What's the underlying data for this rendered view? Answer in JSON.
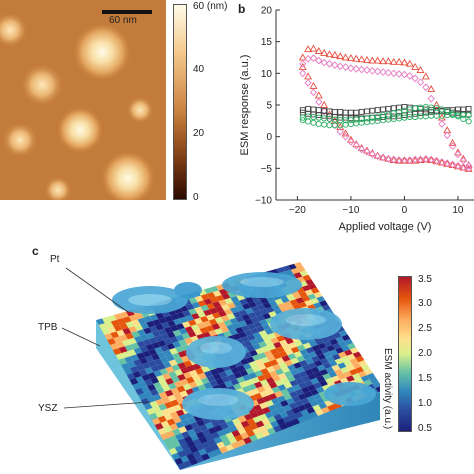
{
  "panel_a": {
    "scalebar_label": "60 nm",
    "colorbar": {
      "ticks": [
        "60 (nm)",
        "40",
        "20",
        "0"
      ],
      "colors": [
        "#fffbe8",
        "#f3c88a",
        "#c9813f",
        "#7a3a12",
        "#2a0a02"
      ]
    }
  },
  "panel_b": {
    "panel_label": "b",
    "chart_data": {
      "type": "scatter",
      "xlabel": "Applied voltage (V)",
      "ylabel": "ESM response (a.u.)",
      "xlim": [
        -24,
        13
      ],
      "ylim": [
        -10,
        20
      ],
      "xticks": [
        "−20",
        "−10",
        "0",
        "10"
      ],
      "yticks": [
        "20",
        "15",
        "10",
        "5",
        "0",
        "−5",
        "−10"
      ],
      "series": [
        {
          "marker": "triangle",
          "color": "#e74c3c",
          "x": [
            -19,
            -18,
            -17,
            -16,
            -15,
            -14,
            -13,
            -12,
            -11,
            -10,
            -9,
            -8,
            -7,
            -6,
            -5,
            -4,
            -3,
            -2,
            -1,
            0,
            1,
            2,
            3,
            4,
            5,
            6,
            7,
            8,
            9,
            10,
            11,
            12
          ],
          "y": [
            12.5,
            13.8,
            13.9,
            13.5,
            13.2,
            13.0,
            12.9,
            12.7,
            12.5,
            12.4,
            12.3,
            12.2,
            12.1,
            12.0,
            12.0,
            11.9,
            11.9,
            11.8,
            11.8,
            11.7,
            11.5,
            11.0,
            10.5,
            9.5,
            7.5,
            5.0,
            3.0,
            1.0,
            -1.0,
            -2.5,
            -3.5,
            -4.5
          ]
        },
        {
          "marker": "triangle",
          "color": "#e74c3c",
          "x": [
            -19,
            -18,
            -17,
            -16,
            -15,
            -14,
            -13,
            -12,
            -11,
            -10,
            -9,
            -8,
            -7,
            -6,
            -5,
            -4,
            -3,
            -2,
            -1,
            0,
            1,
            2,
            3,
            4,
            5,
            6,
            7,
            8,
            9,
            10,
            11,
            12
          ],
          "y": [
            11.0,
            9.5,
            8.0,
            6.5,
            5.0,
            3.5,
            2.5,
            1.5,
            0.5,
            -0.5,
            -1.2,
            -1.8,
            -2.2,
            -2.6,
            -3.0,
            -3.3,
            -3.5,
            -3.7,
            -3.8,
            -3.8,
            -3.8,
            -3.8,
            -3.7,
            -3.6,
            -3.7,
            -3.9,
            -4.1,
            -4.3,
            -4.5,
            -4.7,
            -4.9,
            -5.1
          ]
        },
        {
          "marker": "diamond",
          "color": "#e879c3",
          "x": [
            -19,
            -18,
            -17,
            -16,
            -15,
            -14,
            -13,
            -12,
            -11,
            -10,
            -9,
            -8,
            -7,
            -6,
            -5,
            -4,
            -3,
            -2,
            -1,
            0,
            1,
            2,
            3,
            4,
            5,
            6,
            7,
            8,
            9,
            10,
            11,
            12
          ],
          "y": [
            11.5,
            12.3,
            12.4,
            12.0,
            11.7,
            11.5,
            11.3,
            11.1,
            11.0,
            10.8,
            10.7,
            10.6,
            10.5,
            10.4,
            10.3,
            10.2,
            10.1,
            10.0,
            9.9,
            9.8,
            9.6,
            9.2,
            8.6,
            7.8,
            6.0,
            4.0,
            2.0,
            0.2,
            -1.5,
            -2.8,
            -3.8,
            -4.6
          ]
        },
        {
          "marker": "diamond",
          "color": "#e879c3",
          "x": [
            -19,
            -18,
            -17,
            -16,
            -15,
            -14,
            -13,
            -12,
            -11,
            -10,
            -9,
            -8,
            -7,
            -6,
            -5,
            -4,
            -3,
            -2,
            -1,
            0,
            1,
            2,
            3,
            4,
            5,
            6,
            7,
            8,
            9,
            10,
            11,
            12
          ],
          "y": [
            10.0,
            8.5,
            7.0,
            5.5,
            4.0,
            2.8,
            1.8,
            0.8,
            0.0,
            -0.8,
            -1.4,
            -2.0,
            -2.4,
            -2.8,
            -3.1,
            -3.3,
            -3.5,
            -3.6,
            -3.7,
            -3.7,
            -3.7,
            -3.6,
            -3.6,
            -3.5,
            -3.6,
            -3.8,
            -4.0,
            -4.2,
            -4.4,
            -4.6,
            -4.8,
            -5.0
          ]
        },
        {
          "marker": "square",
          "color": "#444444",
          "x": [
            -19,
            -18,
            -17,
            -16,
            -15,
            -14,
            -13,
            -12,
            -11,
            -10,
            -9,
            -8,
            -7,
            -6,
            -5,
            -4,
            -3,
            -2,
            -1,
            0,
            1,
            2,
            3,
            4,
            5,
            6,
            7,
            8,
            9,
            10,
            11,
            12
          ],
          "y": [
            4.2,
            4.4,
            4.3,
            4.2,
            4.1,
            4.0,
            3.9,
            3.9,
            3.8,
            3.8,
            3.8,
            3.9,
            4.0,
            4.1,
            4.2,
            4.3,
            4.4,
            4.5,
            4.6,
            4.7,
            4.6,
            4.5,
            4.4,
            4.3,
            4.2,
            4.1,
            4.0,
            3.9,
            3.8,
            3.7,
            3.6,
            3.5
          ]
        },
        {
          "marker": "square",
          "color": "#444444",
          "x": [
            -19,
            -18,
            -17,
            -16,
            -15,
            -14,
            -13,
            -12,
            -11,
            -10,
            -9,
            -8,
            -7,
            -6,
            -5,
            -4,
            -3,
            -2,
            -1,
            0,
            1,
            2,
            3,
            4,
            5,
            6,
            7,
            8,
            9,
            10,
            11,
            12
          ],
          "y": [
            3.8,
            3.6,
            3.5,
            3.4,
            3.3,
            3.2,
            3.1,
            3.0,
            3.0,
            2.9,
            2.9,
            2.9,
            2.9,
            3.0,
            3.0,
            3.1,
            3.2,
            3.2,
            3.3,
            3.4,
            3.5,
            3.6,
            3.7,
            3.8,
            3.9,
            4.0,
            4.1,
            4.2,
            4.2,
            4.3,
            4.3,
            4.4
          ]
        },
        {
          "marker": "circle",
          "color": "#27ae60",
          "x": [
            -19,
            -18,
            -17,
            -16,
            -15,
            -14,
            -13,
            -12,
            -11,
            -10,
            -9,
            -8,
            -7,
            -6,
            -5,
            -4,
            -3,
            -2,
            -1,
            0,
            1,
            2,
            3,
            4,
            5,
            6,
            7,
            8,
            9,
            10,
            11,
            12
          ],
          "y": [
            3.0,
            3.2,
            3.1,
            3.0,
            2.9,
            2.8,
            2.7,
            2.6,
            2.6,
            2.6,
            2.7,
            2.8,
            2.9,
            3.0,
            3.2,
            3.4,
            3.5,
            3.7,
            3.9,
            4.1,
            4.3,
            4.5,
            4.6,
            4.7,
            4.6,
            4.5,
            4.3,
            4.0,
            3.6,
            3.2,
            2.8,
            2.4
          ]
        },
        {
          "marker": "circle",
          "color": "#27ae60",
          "x": [
            -19,
            -18,
            -17,
            -16,
            -15,
            -14,
            -13,
            -12,
            -11,
            -10,
            -9,
            -8,
            -7,
            -6,
            -5,
            -4,
            -3,
            -2,
            -1,
            0,
            1,
            2,
            3,
            4,
            5,
            6,
            7,
            8,
            9,
            10,
            11,
            12
          ],
          "y": [
            2.6,
            2.4,
            2.2,
            2.0,
            1.9,
            1.8,
            1.8,
            1.8,
            1.9,
            2.0,
            2.1,
            2.2,
            2.3,
            2.4,
            2.5,
            2.6,
            2.7,
            2.8,
            2.9,
            3.0,
            3.1,
            3.1,
            3.2,
            3.2,
            3.3,
            3.3,
            3.3,
            3.4,
            3.4,
            3.4,
            3.4,
            3.4
          ]
        }
      ]
    }
  },
  "panel_c": {
    "panel_label": "c",
    "labels": {
      "pt": "Pt",
      "tpb": "TPB",
      "ysz": "YSZ"
    },
    "colorbar": {
      "title": "ESM activity (a.u.)",
      "ticks": [
        "3.5",
        "3.0",
        "2.5",
        "2.0",
        "1.5",
        "1.0",
        "0.5"
      ],
      "colors": [
        "#b2182b",
        "#e6550d",
        "#fdae61",
        "#fee08b",
        "#d9ef8b",
        "#66c2a5",
        "#3288bd",
        "#2b4ba0",
        "#1c1f7a"
      ]
    }
  }
}
